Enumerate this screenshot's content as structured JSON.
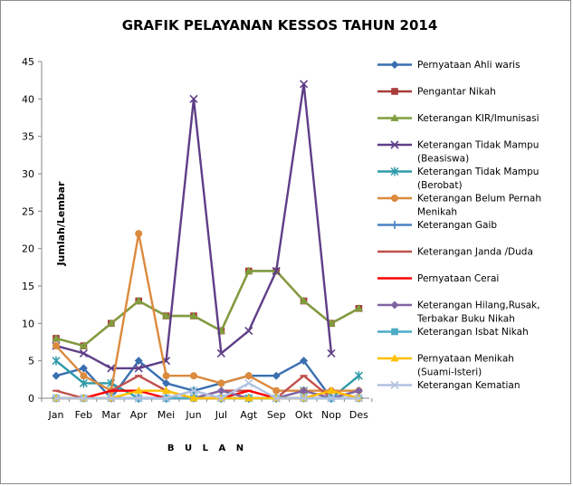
{
  "chart_data": {
    "type": "line",
    "title": "GRAFIK PELAYANAN KESSOS TAHUN 2014",
    "xlabel": "B U L A N",
    "ylabel": "Jumlah/Lembar",
    "ylim": [
      0,
      45
    ],
    "yticks": [
      0,
      5,
      10,
      15,
      20,
      25,
      30,
      35,
      40,
      45
    ],
    "grid": false,
    "legend_position": "right",
    "categories": [
      "Jan",
      "Feb",
      "Mar",
      "Apr",
      "Mei",
      "Jun",
      "Jul",
      "Agt",
      "Sep",
      "Okt",
      "Nop",
      "Des"
    ],
    "series": [
      {
        "name": "Pernyataan Ahli waris",
        "color": "#3a6fb0",
        "marker": "diamond",
        "values": [
          3,
          4,
          0,
          5,
          2,
          1,
          2,
          3,
          3,
          5,
          0,
          1
        ]
      },
      {
        "name": "Pengantar Nikah",
        "color": "#a83c3a",
        "marker": "square",
        "values": [
          8,
          7,
          10,
          13,
          11,
          11,
          9,
          17,
          17,
          13,
          10,
          12
        ]
      },
      {
        "name": "Keterangan KIR/Imunisasi",
        "color": "#7f9e3e",
        "marker": "triangle",
        "values": [
          8,
          7,
          10,
          13,
          11,
          11,
          9,
          17,
          17,
          13,
          10,
          12
        ]
      },
      {
        "name": "Keterangan Tidak Mampu (Beasiswa)",
        "color": "#5f3e87",
        "marker": "x",
        "values": [
          7,
          6,
          4,
          4,
          5,
          40,
          6,
          9,
          17,
          42,
          6,
          null
        ]
      },
      {
        "name": "Keterangan Tidak Mampu (Berobat)",
        "color": "#2e9aa9",
        "marker": "star",
        "values": [
          5,
          2,
          2,
          0,
          0,
          1,
          0,
          0,
          0,
          1,
          0,
          3
        ]
      },
      {
        "name": "Keterangan Belum Pernah Menikah",
        "color": "#dc8a3e",
        "marker": "circle",
        "values": [
          7,
          3,
          1,
          22,
          3,
          3,
          2,
          3,
          1,
          1,
          1,
          1
        ]
      },
      {
        "name": "Keterangan Gaib",
        "color": "#4a82c4",
        "marker": "plus",
        "values": [
          0,
          0,
          0,
          0,
          0,
          0,
          0,
          0,
          0,
          0,
          0,
          0
        ]
      },
      {
        "name": "Keterangan Janda /Duda",
        "color": "#c0504d",
        "marker": "dash",
        "values": [
          1,
          0,
          1,
          3,
          1,
          0,
          1,
          1,
          0,
          3,
          0,
          0
        ]
      },
      {
        "name": "Pernyataan Cerai",
        "color": "#ff0000",
        "marker": "none",
        "values": [
          0,
          0,
          1,
          1,
          0,
          0,
          0,
          1,
          0,
          0,
          1,
          0
        ]
      },
      {
        "name": "Keterangan Hilang,Rusak, Terbakar Buku Nikah",
        "color": "#8064a2",
        "marker": "diamond",
        "values": [
          0,
          0,
          0,
          0,
          0,
          0,
          1,
          0,
          0,
          1,
          0,
          1
        ]
      },
      {
        "name": "Keterangan Isbat Nikah",
        "color": "#4bacc6",
        "marker": "square",
        "values": [
          0,
          0,
          0,
          0,
          0,
          0,
          0,
          0,
          0,
          0,
          0,
          0
        ]
      },
      {
        "name": "Pernyataan Menikah (Suami-Isteri)",
        "color": "#ffc000",
        "marker": "triangle",
        "values": [
          0,
          0,
          0,
          1,
          1,
          0,
          0,
          0,
          0,
          0,
          1,
          0
        ]
      },
      {
        "name": "Keterangan Kematian",
        "color": "#b3c2e0",
        "marker": "x",
        "values": [
          0,
          0,
          0,
          0,
          0,
          1,
          0,
          2,
          0,
          0,
          0,
          0
        ]
      }
    ]
  }
}
